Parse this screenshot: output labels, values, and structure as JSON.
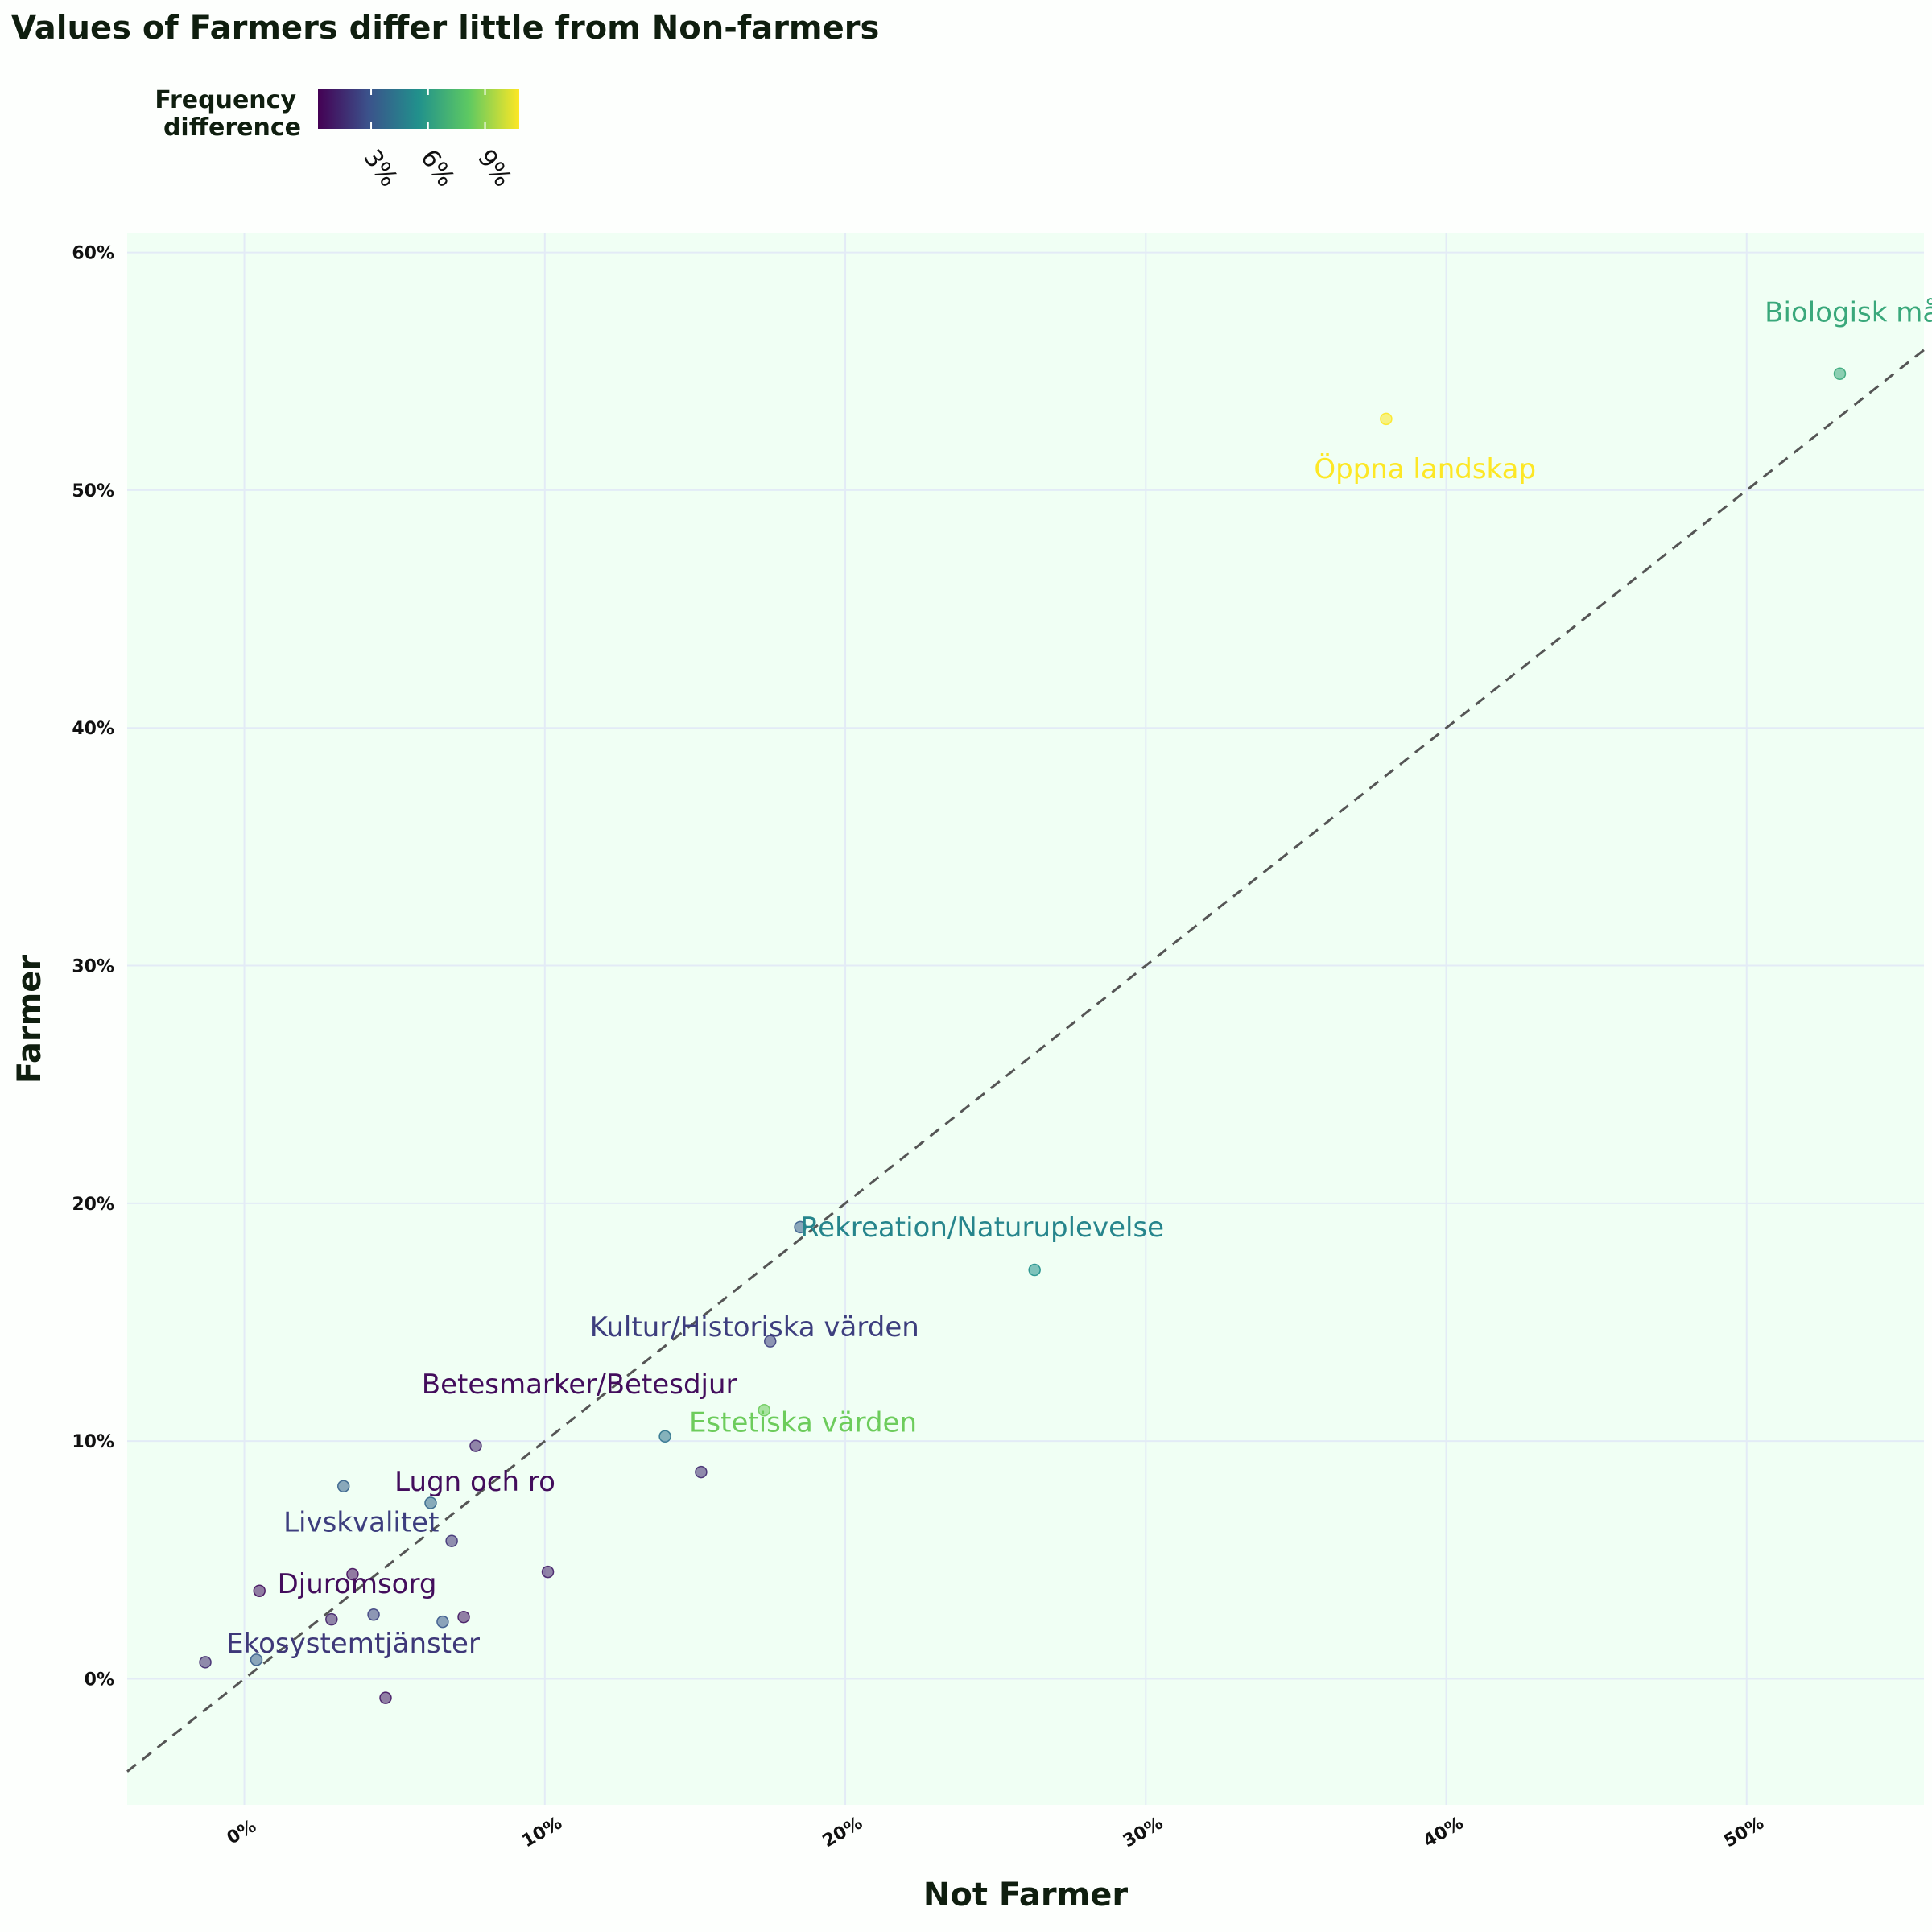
{
  "chart_data": {
    "type": "scatter",
    "title": "Values of Farmers differ little from Non-farmers",
    "xlabel": "Not Farmer",
    "ylabel": "Farmer",
    "xlim": [
      -3.9,
      55.9
    ],
    "ylim": [
      -5.3,
      60.8
    ],
    "xticks": [
      0,
      10,
      20,
      30,
      40,
      50
    ],
    "xtick_labels": [
      "0%",
      "10%",
      "20%",
      "30%",
      "40%",
      "50%"
    ],
    "yticks": [
      0,
      10,
      20,
      30,
      40,
      50,
      60
    ],
    "ytick_labels": [
      "0%",
      "10%",
      "20%",
      "30%",
      "40%",
      "50%",
      "60%"
    ],
    "grid": true,
    "reference_line": "y = x (dashed)",
    "legend": {
      "title": "Frequency\ndifference",
      "title_lines": [
        "Frequency",
        "difference"
      ],
      "placement": "top-left",
      "colormap": "viridis",
      "range": [
        0.2,
        10.8
      ],
      "ticks": [
        3,
        6,
        9
      ],
      "tick_labels": [
        "3%",
        "6%",
        "9%"
      ]
    },
    "points": [
      {
        "x": 53.1,
        "y": 54.9,
        "diff": 6.6
      },
      {
        "x": 38.0,
        "y": 53.0,
        "diff": 10.8
      },
      {
        "x": 26.3,
        "y": 17.2,
        "diff": 5.5
      },
      {
        "x": 18.5,
        "y": 19.0,
        "diff": 3.3
      },
      {
        "x": 17.5,
        "y": 14.2,
        "diff": 2.2
      },
      {
        "x": 17.3,
        "y": 11.3,
        "diff": 8.4
      },
      {
        "x": 15.2,
        "y": 8.7,
        "diff": 1.5
      },
      {
        "x": 14.0,
        "y": 10.2,
        "diff": 4.2
      },
      {
        "x": 10.1,
        "y": 4.5,
        "diff": 1.1
      },
      {
        "x": 7.7,
        "y": 9.8,
        "diff": 1.2
      },
      {
        "x": 6.9,
        "y": 5.8,
        "diff": 1.8
      },
      {
        "x": 6.2,
        "y": 7.4,
        "diff": 3.7
      },
      {
        "x": 7.3,
        "y": 2.6,
        "diff": 0.9
      },
      {
        "x": 6.6,
        "y": 2.4,
        "diff": 3.1
      },
      {
        "x": 4.3,
        "y": 2.7,
        "diff": 2.3
      },
      {
        "x": 3.3,
        "y": 8.1,
        "diff": 3.5
      },
      {
        "x": 3.6,
        "y": 4.4,
        "diff": 0.6
      },
      {
        "x": 2.9,
        "y": 2.5,
        "diff": 1.2
      },
      {
        "x": 4.7,
        "y": -0.8,
        "diff": 0.9
      },
      {
        "x": 0.5,
        "y": 3.7,
        "diff": 0.7
      },
      {
        "x": 0.4,
        "y": 0.8,
        "diff": 3.3
      },
      {
        "x": -1.3,
        "y": 0.7,
        "diff": 1.5
      }
    ],
    "annotations": [
      {
        "text": "Biologisk mångfald",
        "x": 50.6,
        "y": 57.1,
        "diff": 6.6
      },
      {
        "text": "Öppna landskap",
        "x": 35.6,
        "y": 50.5,
        "diff": 10.8
      },
      {
        "text": "Rekreation/Naturuplevelse",
        "x": 18.5,
        "y": 18.6,
        "diff": 5.0
      },
      {
        "text": "Kultur/Historiska värden",
        "x": 11.5,
        "y": 14.4,
        "diff": 2.2
      },
      {
        "text": "Betesmarker/Betesdjur",
        "x": 5.9,
        "y": 12.0,
        "diff": 0.6
      },
      {
        "text": "Estetiska värden",
        "x": 14.8,
        "y": 10.4,
        "diff": 8.4
      },
      {
        "text": "Lugn och ro",
        "x": 5.0,
        "y": 7.9,
        "diff": 0.6
      },
      {
        "text": "Livskvalitet",
        "x": 1.3,
        "y": 6.2,
        "diff": 2.2
      },
      {
        "text": "Djuromsorg",
        "x": 1.1,
        "y": 3.6,
        "diff": 0.6
      },
      {
        "text": "Ekosystemtjänster",
        "x": -0.6,
        "y": 1.1,
        "diff": 2.0
      }
    ]
  }
}
